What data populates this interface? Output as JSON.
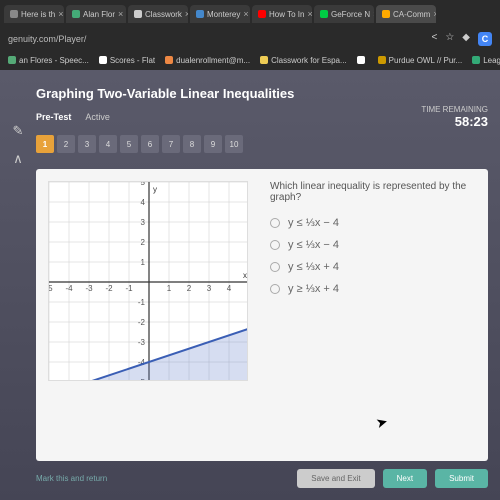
{
  "browser": {
    "tabs": [
      {
        "label": "Here is th",
        "icon": "#888"
      },
      {
        "label": "Alan Flor",
        "icon": "#4a7"
      },
      {
        "label": "Classwork",
        "icon": "#ccc"
      },
      {
        "label": "Monterey",
        "icon": "#48c"
      },
      {
        "label": "How To In",
        "icon": "#f00"
      },
      {
        "label": "GeForce N",
        "icon": "#0c4"
      },
      {
        "label": "CA-Comm",
        "icon": "#fa0",
        "active": true
      }
    ],
    "url": "genuity.com/Player/",
    "bookmarks": [
      {
        "label": "an Flores - Speec...",
        "icon": "#5a7"
      },
      {
        "label": "Scores - Flat",
        "icon": "#fff"
      },
      {
        "label": "dualenrollment@m...",
        "icon": "#e84"
      },
      {
        "label": "Classwork for Espa...",
        "icon": "#ec5"
      },
      {
        "label": "",
        "icon": "#fff"
      },
      {
        "label": "Purdue OWL // Pur...",
        "icon": "#c90"
      },
      {
        "label": "League of Legends...",
        "icon": "#3a7"
      }
    ],
    "icons": {
      "share": "<",
      "star": "☆",
      "ext": "◆"
    }
  },
  "app": {
    "title": "Graphing Two-Variable Linear Inequalities",
    "subhead": {
      "pretest": "Pre-Test",
      "status": "Active"
    },
    "timer": {
      "label": "TIME REMAINING",
      "value": "58:23"
    },
    "questions": [
      "1",
      "2",
      "3",
      "4",
      "5",
      "6",
      "7",
      "8",
      "9",
      "10"
    ],
    "current_q": 0,
    "question_text": "Which linear inequality is represented by the graph?",
    "options": [
      "y ≤ ⅓x − 4",
      "y ≤ ⅓x − 4",
      "y ≤ ⅓x + 4",
      "y ≥ ⅓x + 4"
    ],
    "mark_label": "Mark this and return",
    "save_label": "Save and Exit",
    "next_label": "Next",
    "submit_label": "Submit"
  },
  "chart": {
    "type": "line-inequality",
    "xlim": [
      -5,
      5
    ],
    "ylim": [
      -5,
      5
    ],
    "tick_step": 1,
    "grid_color": "#cccccc",
    "axis_color": "#333333",
    "line_color": "#3a5eb5",
    "shade_color": "rgba(90,120,200,0.25)",
    "line_width": 2,
    "background_color": "#ffffff",
    "axis_labels": {
      "x": "x",
      "y": "y"
    },
    "line": {
      "slope": 0.333,
      "intercept": -4,
      "shade": "below"
    },
    "label_fontsize": 8
  },
  "colors": {
    "accent": "#e8a23a",
    "teal": "#5ab5a5",
    "app_bg": "#4d4d5d"
  }
}
